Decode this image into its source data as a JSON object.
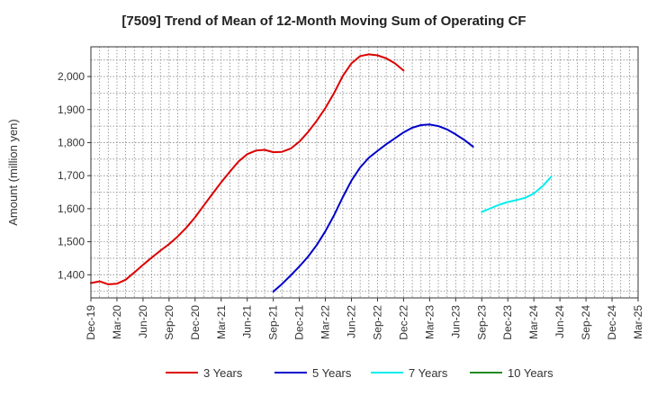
{
  "chart_data": {
    "type": "line",
    "title": "[7509]  Trend of Mean of 12-Month Moving Sum of Operating CF",
    "xlabel": "",
    "ylabel": "Amount (million yen)",
    "ylim": [
      1330,
      2090
    ],
    "yticks": [
      1400,
      1500,
      1600,
      1700,
      1800,
      1900,
      2000
    ],
    "ytick_labels": [
      "1,400",
      "1,500",
      "1,600",
      "1,700",
      "1,800",
      "1,900",
      "2,000"
    ],
    "xtick_labels": [
      "Dec-19",
      "Mar-20",
      "Jun-20",
      "Sep-20",
      "Dec-20",
      "Mar-21",
      "Jun-21",
      "Sep-21",
      "Dec-21",
      "Mar-22",
      "Jun-22",
      "Sep-22",
      "Dec-22",
      "Mar-23",
      "Jun-23",
      "Sep-23",
      "Dec-23",
      "Mar-24",
      "Jun-24",
      "Sep-24",
      "Dec-24",
      "Mar-25"
    ],
    "grid": true,
    "legend": "bottom",
    "series": [
      {
        "name": "3 Years",
        "color": "#dd0000",
        "points": [
          [
            0,
            1375
          ],
          [
            1,
            1380
          ],
          [
            2,
            1371
          ],
          [
            3,
            1373
          ],
          [
            4,
            1385
          ],
          [
            5,
            1407
          ],
          [
            6,
            1430
          ],
          [
            7,
            1452
          ],
          [
            8,
            1473
          ],
          [
            9,
            1493
          ],
          [
            10,
            1516
          ],
          [
            11,
            1543
          ],
          [
            12,
            1574
          ],
          [
            13,
            1610
          ],
          [
            14,
            1645
          ],
          [
            15,
            1680
          ],
          [
            16,
            1712
          ],
          [
            17,
            1743
          ],
          [
            18,
            1765
          ],
          [
            19,
            1776
          ],
          [
            20,
            1778
          ],
          [
            21,
            1771
          ],
          [
            22,
            1772
          ],
          [
            23,
            1782
          ],
          [
            24,
            1803
          ],
          [
            25,
            1832
          ],
          [
            26,
            1866
          ],
          [
            27,
            1905
          ],
          [
            28,
            1950
          ],
          [
            29,
            2002
          ],
          [
            30,
            2040
          ],
          [
            31,
            2062
          ],
          [
            32,
            2067
          ],
          [
            33,
            2064
          ],
          [
            34,
            2055
          ],
          [
            35,
            2040
          ],
          [
            36,
            2018
          ]
        ]
      },
      {
        "name": "5 Years",
        "color": "#0000cc",
        "points": [
          [
            21,
            1349
          ],
          [
            22,
            1372
          ],
          [
            23,
            1398
          ],
          [
            24,
            1425
          ],
          [
            25,
            1455
          ],
          [
            26,
            1490
          ],
          [
            27,
            1532
          ],
          [
            28,
            1580
          ],
          [
            29,
            1635
          ],
          [
            30,
            1685
          ],
          [
            31,
            1725
          ],
          [
            32,
            1754
          ],
          [
            33,
            1775
          ],
          [
            34,
            1795
          ],
          [
            35,
            1813
          ],
          [
            36,
            1831
          ],
          [
            37,
            1845
          ],
          [
            38,
            1853
          ],
          [
            39,
            1855
          ],
          [
            40,
            1850
          ],
          [
            41,
            1840
          ],
          [
            42,
            1825
          ],
          [
            43,
            1808
          ],
          [
            44,
            1788
          ]
        ]
      },
      {
        "name": "7 Years",
        "color": "#00eeee",
        "points": [
          [
            45,
            1590
          ],
          [
            46,
            1601
          ],
          [
            47,
            1612
          ],
          [
            48,
            1620
          ],
          [
            49,
            1626
          ],
          [
            50,
            1633
          ],
          [
            51,
            1646
          ],
          [
            52,
            1668
          ],
          [
            53,
            1697
          ]
        ]
      },
      {
        "name": "10 Years",
        "color": "#228b22",
        "points": []
      }
    ]
  }
}
